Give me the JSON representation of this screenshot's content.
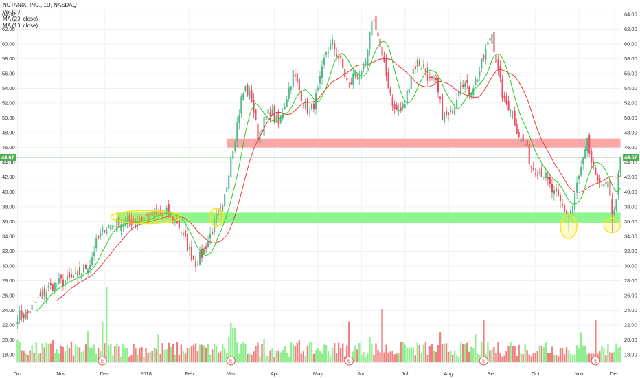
{
  "legend": {
    "symbol": "NUTANIX, INC., 1D, NASDAQ",
    "vol": "Vol (20)",
    "ma20": "MA (20, close)",
    "ma10": "MA (10, close)"
  },
  "colors": {
    "up": "#53b987",
    "down": "#eb4d5c",
    "vol_up": "#90ee90",
    "vol_down": "#f08080",
    "ma20": "#e8383d",
    "ma10": "#22cc22",
    "support_zone": "#8ff58f",
    "resistance_zone": "#f9a7a7",
    "highlight": "#f2e62b",
    "price_tag": "#4caf50"
  },
  "current_price_label": "44.67",
  "earnings_marker": "E",
  "chart_data": {
    "type": "candlestick",
    "title": "NUTANIX, INC., 1D, NASDAQ",
    "y_ticks": [
      "18.00",
      "20.00",
      "22.00",
      "24.00",
      "26.00",
      "28.00",
      "30.00",
      "32.00",
      "34.00",
      "36.00",
      "38.00",
      "40.00",
      "42.00",
      "44.00",
      "46.00",
      "48.00",
      "50.00",
      "52.00",
      "54.00",
      "56.00",
      "58.00",
      "60.00",
      "62.00",
      "64.00"
    ],
    "ylim": [
      17,
      65
    ],
    "x_labels": [
      "Oct",
      "Nov",
      "Dec",
      "2018",
      "Feb",
      "Mar",
      "Apr",
      "May",
      "Jun",
      "Jul",
      "Aug",
      "Sep",
      "Oct",
      "Nov",
      "Dec"
    ],
    "x_label_positions": [
      0,
      21,
      42,
      62,
      83,
      103,
      124,
      145,
      166,
      187,
      208,
      229,
      250,
      271,
      292
    ],
    "n_bars": 292,
    "current_price": 44.67,
    "resistance_zone": [
      46.0,
      47.2
    ],
    "support_zone": [
      35.8,
      37.2
    ],
    "earnings_bars": [
      41,
      103,
      160,
      225,
      279
    ],
    "highlight_ellipses": [
      {
        "x_center": 62,
        "y_center": 36.6,
        "x_radius": 17,
        "y_radius": 0.9
      },
      {
        "x_center": 96,
        "y_center": 36.6,
        "x_radius": 3.5,
        "y_radius": 1.2
      },
      {
        "x_center": 266,
        "y_center": 35.3,
        "x_radius": 4,
        "y_radius": 1.6
      },
      {
        "x_center": 287,
        "y_center": 35.5,
        "x_radius": 4,
        "y_radius": 1.0
      }
    ],
    "close_anchors": [
      [
        0,
        23.3
      ],
      [
        5,
        23.5
      ],
      [
        10,
        25.5
      ],
      [
        15,
        27.0
      ],
      [
        21,
        27.8
      ],
      [
        28,
        28.4
      ],
      [
        35,
        30.5
      ],
      [
        38,
        33.0
      ],
      [
        42,
        35.2
      ],
      [
        48,
        35.8
      ],
      [
        55,
        36.0
      ],
      [
        62,
        36.6
      ],
      [
        68,
        36.9
      ],
      [
        72,
        37.2
      ],
      [
        77,
        36.0
      ],
      [
        80,
        34.0
      ],
      [
        83,
        32.0
      ],
      [
        86,
        30.5
      ],
      [
        89,
        31.5
      ],
      [
        92,
        33.5
      ],
      [
        96,
        36.4
      ],
      [
        99,
        37.5
      ],
      [
        101,
        41.0
      ],
      [
        103,
        45.0
      ],
      [
        105,
        47.5
      ],
      [
        108,
        52.5
      ],
      [
        110,
        54.0
      ],
      [
        113,
        52.5
      ],
      [
        116,
        47.5
      ],
      [
        119,
        49.5
      ],
      [
        122,
        51.0
      ],
      [
        126,
        49.0
      ],
      [
        130,
        53.0
      ],
      [
        133,
        56.0
      ],
      [
        137,
        53.0
      ],
      [
        141,
        50.5
      ],
      [
        145,
        53.5
      ],
      [
        149,
        59.0
      ],
      [
        152,
        60.0
      ],
      [
        156,
        57.5
      ],
      [
        160,
        54.0
      ],
      [
        163,
        56.5
      ],
      [
        166,
        55.5
      ],
      [
        169,
        58.5
      ],
      [
        171,
        63.5
      ],
      [
        173,
        62.5
      ],
      [
        176,
        58.0
      ],
      [
        179,
        54.5
      ],
      [
        182,
        51.0
      ],
      [
        185,
        51.0
      ],
      [
        187,
        52.0
      ],
      [
        190,
        56.0
      ],
      [
        193,
        57.5
      ],
      [
        196,
        57.0
      ],
      [
        199,
        55.0
      ],
      [
        202,
        54.5
      ],
      [
        205,
        50.5
      ],
      [
        208,
        50.0
      ],
      [
        211,
        52.0
      ],
      [
        214,
        55.5
      ],
      [
        218,
        53.5
      ],
      [
        222,
        55.5
      ],
      [
        226,
        59.0
      ],
      [
        229,
        61.5
      ],
      [
        232,
        56.0
      ],
      [
        235,
        52.0
      ],
      [
        238,
        51.5
      ],
      [
        241,
        48.5
      ],
      [
        243,
        47.0
      ],
      [
        245,
        46.5
      ],
      [
        248,
        43.5
      ],
      [
        251,
        43.0
      ],
      [
        254,
        42.5
      ],
      [
        258,
        40.0
      ],
      [
        261,
        39.0
      ],
      [
        264,
        37.5
      ],
      [
        266,
        37.0
      ],
      [
        268,
        38.0
      ],
      [
        270,
        41.0
      ],
      [
        273,
        44.0
      ],
      [
        275,
        46.5
      ],
      [
        277,
        44.0
      ],
      [
        279,
        41.5
      ],
      [
        281,
        42.0
      ],
      [
        283,
        40.5
      ],
      [
        285,
        41.0
      ],
      [
        287,
        36.5
      ],
      [
        289,
        39.5
      ],
      [
        291,
        44.67
      ]
    ],
    "volume_ylim_note": "volume pane shares the lower price area"
  }
}
